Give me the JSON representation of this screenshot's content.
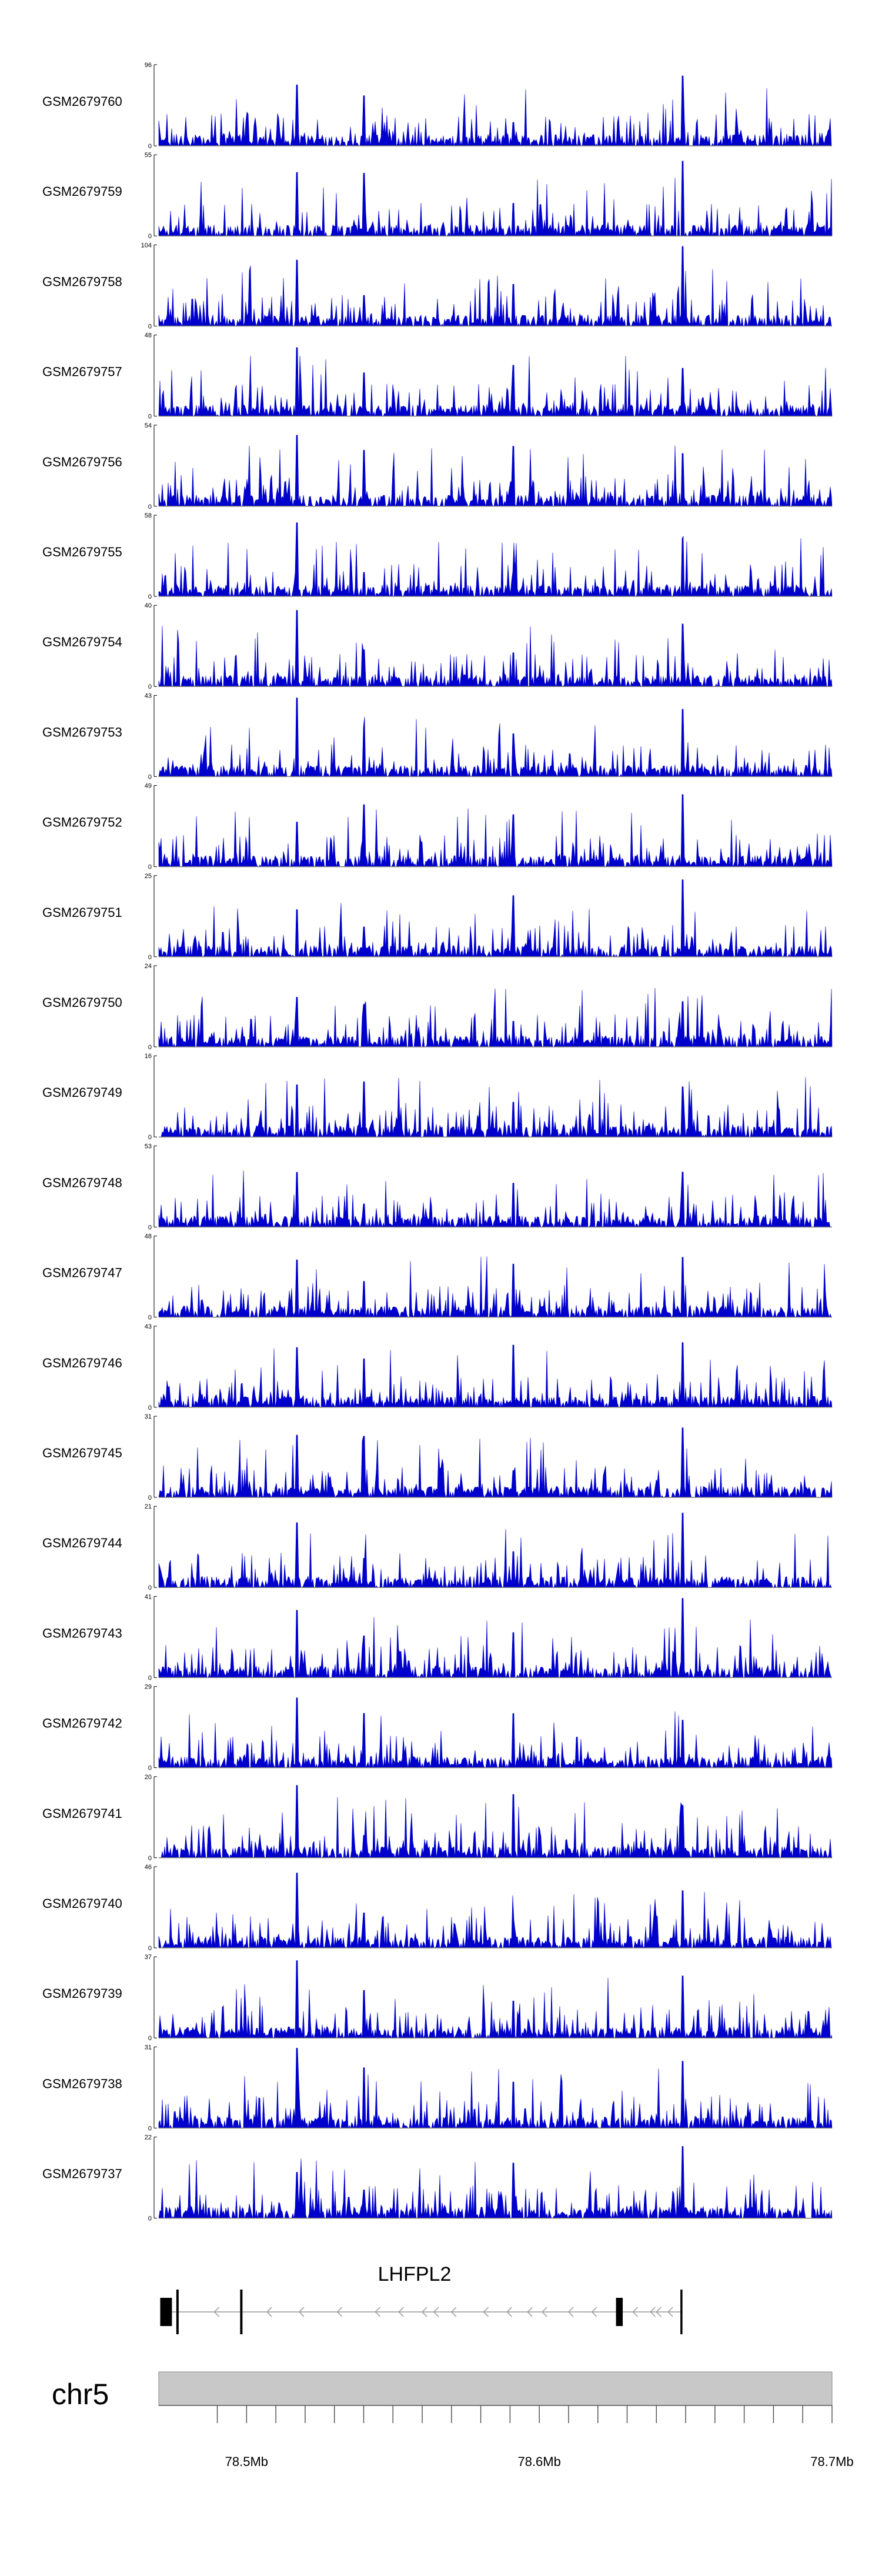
{
  "chart_data": {
    "type": "area",
    "title": "",
    "xlabel": "",
    "ylabel": "",
    "xlim_mb": [
      78.47,
      78.7
    ],
    "series_color": "#0000cc",
    "tracks": [
      {
        "name": "GSM2679760",
        "ymax": 96,
        "ymin": 0
      },
      {
        "name": "GSM2679759",
        "ymax": 55,
        "ymin": 0
      },
      {
        "name": "GSM2679758",
        "ymax": 104,
        "ymin": 0
      },
      {
        "name": "GSM2679757",
        "ymax": 48,
        "ymin": 0
      },
      {
        "name": "GSM2679756",
        "ymax": 54,
        "ymin": 0
      },
      {
        "name": "GSM2679755",
        "ymax": 58,
        "ymin": 0
      },
      {
        "name": "GSM2679754",
        "ymax": 40,
        "ymin": 0
      },
      {
        "name": "GSM2679753",
        "ymax": 43,
        "ymin": 0
      },
      {
        "name": "GSM2679752",
        "ymax": 49,
        "ymin": 0
      },
      {
        "name": "GSM2679751",
        "ymax": 25,
        "ymin": 0
      },
      {
        "name": "GSM2679750",
        "ymax": 24,
        "ymin": 0
      },
      {
        "name": "GSM2679749",
        "ymax": 16,
        "ymin": 0
      },
      {
        "name": "GSM2679748",
        "ymax": 53,
        "ymin": 0
      },
      {
        "name": "GSM2679747",
        "ymax": 48,
        "ymin": 0
      },
      {
        "name": "GSM2679746",
        "ymax": 43,
        "ymin": 0
      },
      {
        "name": "GSM2679745",
        "ymax": 31,
        "ymin": 0
      },
      {
        "name": "GSM2679744",
        "ymax": 21,
        "ymin": 0
      },
      {
        "name": "GSM2679743",
        "ymax": 41,
        "ymin": 0
      },
      {
        "name": "GSM2679742",
        "ymax": 29,
        "ymin": 0
      },
      {
        "name": "GSM2679741",
        "ymax": 20,
        "ymin": 0
      },
      {
        "name": "GSM2679740",
        "ymax": 46,
        "ymin": 0
      },
      {
        "name": "GSM2679739",
        "ymax": 37,
        "ymin": 0
      },
      {
        "name": "GSM2679738",
        "ymax": 31,
        "ymin": 0
      },
      {
        "name": "GSM2679737",
        "ymax": 22,
        "ymin": 0
      }
    ],
    "shared_peaks_mb": [
      78.5173,
      78.54,
      78.591,
      78.649
    ],
    "gene": {
      "name": "LHFPL2",
      "strand": "-",
      "start_mb": 78.4705,
      "end_mb": 78.6489,
      "exons_mb": [
        [
          78.4705,
          78.4745
        ],
        [
          78.476,
          78.4768
        ],
        [
          78.4978,
          78.4986
        ],
        [
          78.6262,
          78.6285
        ],
        [
          78.6482,
          78.6489
        ]
      ],
      "introns_ticks_mb": [
        78.489,
        78.507,
        78.518,
        78.531,
        78.544,
        78.552,
        78.56,
        78.564,
        78.57,
        78.581,
        78.589,
        78.596,
        78.601,
        78.61,
        78.618,
        78.632,
        78.638,
        78.64,
        78.644
      ]
    },
    "chromosome": {
      "name": "chr5",
      "tick_labels": [
        "78.5Mb",
        "78.6Mb",
        "78.7Mb"
      ],
      "tick_values_mb": [
        78.5,
        78.6,
        78.7
      ],
      "minor_ticks_mb": [
        78.49,
        78.51,
        78.52,
        78.53,
        78.54,
        78.55,
        78.56,
        78.57,
        78.58,
        78.59,
        78.61,
        78.62,
        78.63,
        78.64,
        78.65,
        78.66,
        78.67,
        78.68,
        78.69
      ]
    }
  }
}
